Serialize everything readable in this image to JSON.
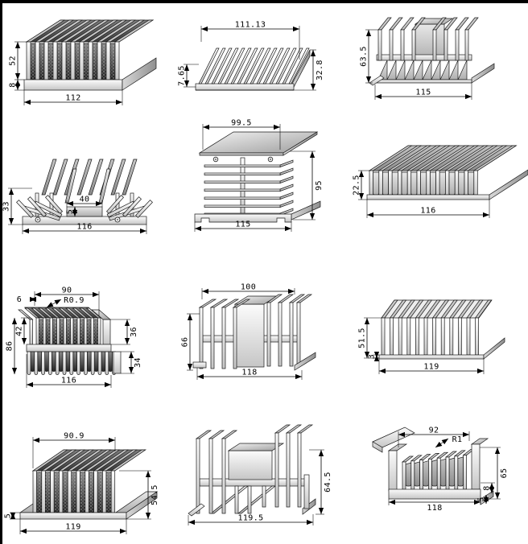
{
  "page": {
    "title": "heatsink extrusion profile catalog"
  },
  "colors": {
    "background": "#ffffff",
    "line": "#1a1a1a",
    "dim_line": "#000000",
    "metal_light": "#f5f5f5",
    "metal_mid": "#c9c9c9",
    "metal_dark": "#3f3f3f",
    "border": "#000000"
  },
  "drawings": [
    {
      "name": "iso-fin-heatsink",
      "labels": {
        "height": "52",
        "base": "8",
        "width": "112"
      }
    },
    {
      "name": "blade-fin-heatsink",
      "labels": {
        "top_width": "111.13",
        "front_height": "7.65",
        "side_height": "32.8"
      }
    },
    {
      "name": "dual-group-fin-heatsink",
      "labels": {
        "height": "63.5",
        "width": "115"
      }
    },
    {
      "name": "fishbone-fin-heatsink",
      "labels": {
        "height": "33",
        "channel_width": "40",
        "channel_depth": "5",
        "width": "116"
      }
    },
    {
      "name": "stacked-plate-tower-heatsink",
      "labels": {
        "top_width": "99.5",
        "height": "95",
        "width": "115"
      }
    },
    {
      "name": "low-iso-fin-heatsink",
      "labels": {
        "height": "22.5",
        "width": "116"
      }
    },
    {
      "name": "double-sided-comb-heatsink",
      "labels": {
        "fin_offset": "6",
        "fin_span": "90",
        "fin_radius": "R0.9",
        "upper_fin_height": "42",
        "total_height": "86",
        "right_upper_height": "36",
        "right_lower_height": "34",
        "width": "116"
      }
    },
    {
      "name": "h-profile-plate-heatsink",
      "labels": {
        "top_width": "100",
        "height": "66",
        "width": "118"
      }
    },
    {
      "name": "straight-fin-heatsink",
      "labels": {
        "height": "51.5",
        "base_thickness": "3",
        "width": "119"
      }
    },
    {
      "name": "tall-plate-iso-heatsink",
      "labels": {
        "fin_span": "90.9",
        "base_thickness": "5",
        "height": "54.5",
        "width": "119"
      }
    },
    {
      "name": "h-profile-heatsink-2",
      "labels": {
        "height": "64.5",
        "width": "119.5"
      }
    },
    {
      "name": "u-channel-fin-heatsink",
      "labels": {
        "top_width": "92",
        "fin_radius": "R1",
        "height": "65",
        "step_height": "8",
        "base_step": "5",
        "width": "118"
      }
    }
  ]
}
